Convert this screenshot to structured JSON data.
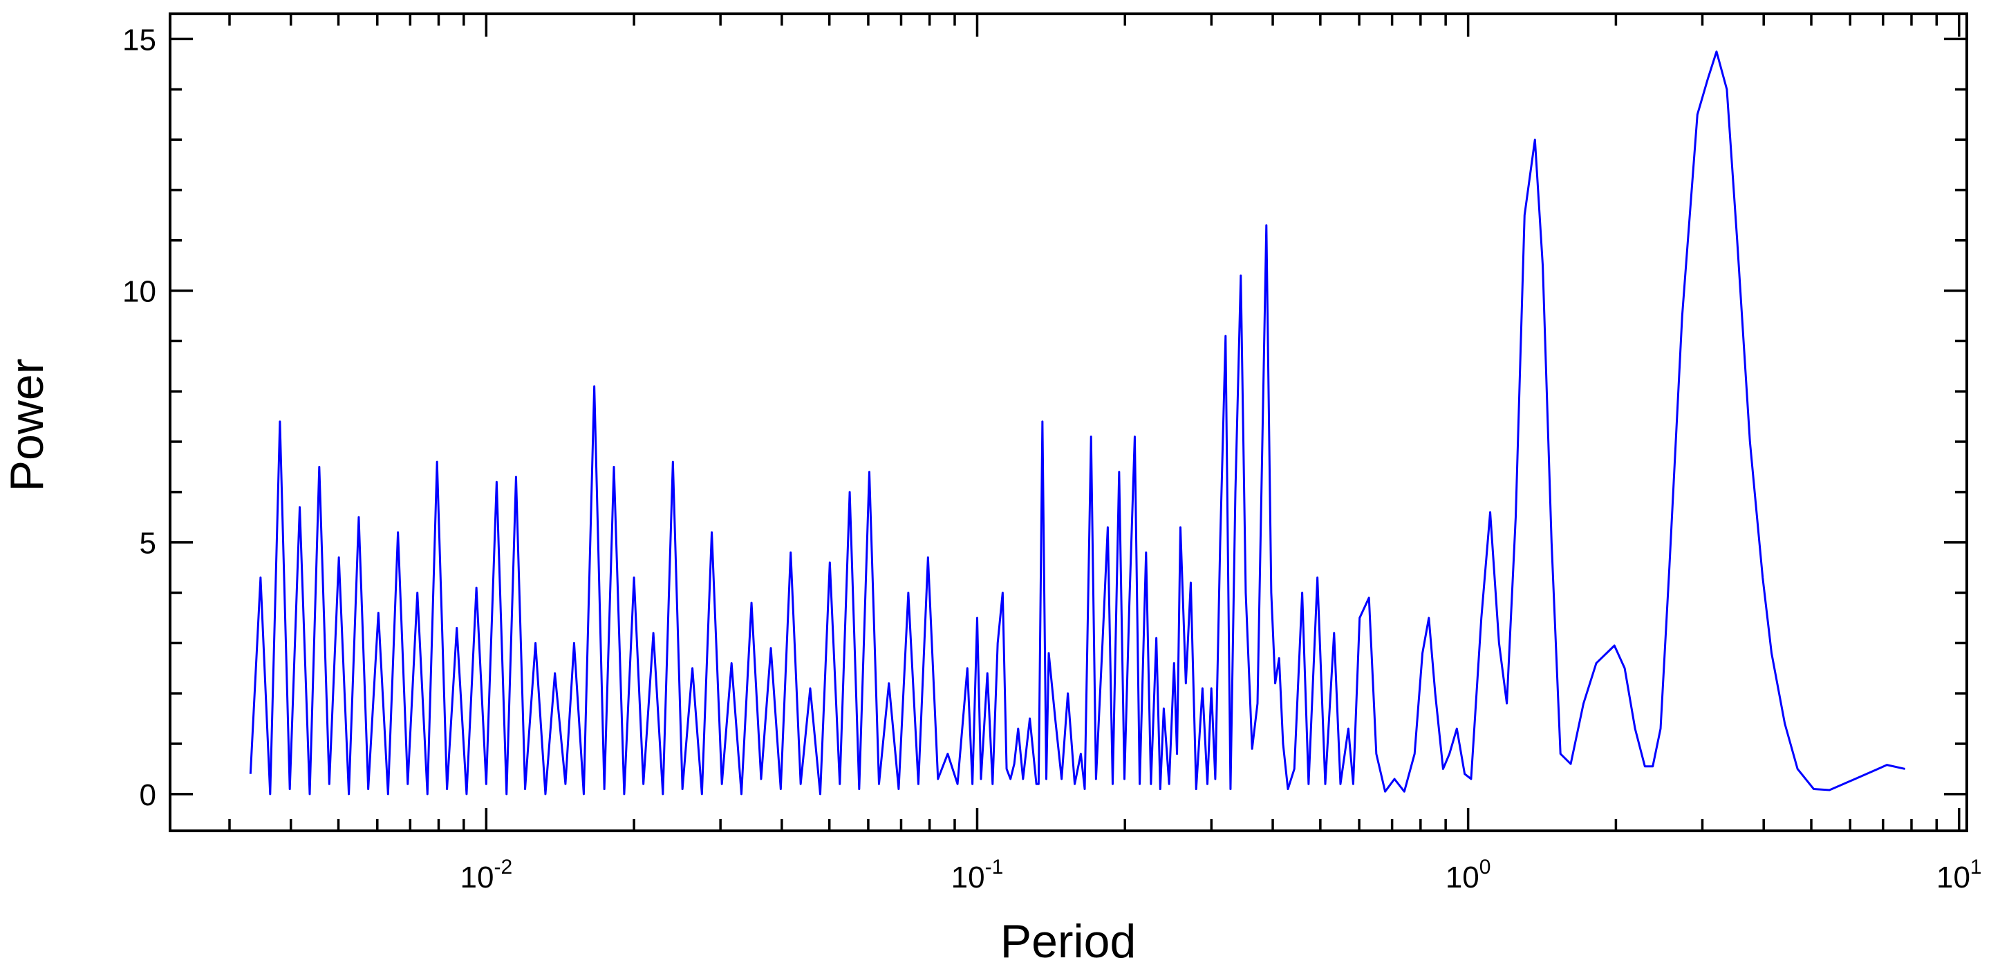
{
  "chart_data": {
    "type": "line",
    "x_label": "Period",
    "y_label": "Power",
    "xscale": "log",
    "color": "#0000ff",
    "xlim": [
      0.00227,
      10.37
    ],
    "ylim": [
      -0.73,
      15.5
    ],
    "xticks": [
      {
        "value": 0.01,
        "label": "10",
        "exponent": "-2"
      },
      {
        "value": 0.1,
        "label": "10",
        "exponent": "-1"
      },
      {
        "value": 1,
        "label": "10",
        "exponent": "0"
      },
      {
        "value": 10,
        "label": "10",
        "exponent": "1"
      }
    ],
    "xminorticks": [
      0.003,
      0.004,
      0.005,
      0.006,
      0.007,
      0.008,
      0.009,
      0.02,
      0.03,
      0.04,
      0.05,
      0.06,
      0.07,
      0.08,
      0.09,
      0.2,
      0.3,
      0.4,
      0.5,
      0.6,
      0.7,
      0.8,
      0.9,
      2,
      3,
      4,
      5,
      6,
      7,
      8,
      9
    ],
    "yticks": [
      0,
      5,
      10,
      15
    ],
    "yminorticks": [
      1,
      2,
      3,
      4,
      6,
      7,
      8,
      9,
      11,
      12,
      13,
      14
    ],
    "x": [
      0.00331,
      0.00347,
      0.00363,
      0.0038,
      0.00398,
      0.00417,
      0.00437,
      0.00457,
      0.00479,
      0.00501,
      0.00525,
      0.0055,
      0.00575,
      0.00603,
      0.00631,
      0.00661,
      0.00692,
      0.00724,
      0.00759,
      0.00794,
      0.00832,
      0.00871,
      0.00912,
      0.00955,
      0.01,
      0.0105,
      0.011,
      0.0115,
      0.012,
      0.0126,
      0.0132,
      0.0138,
      0.0145,
      0.0151,
      0.0158,
      0.0166,
      0.0174,
      0.0182,
      0.0191,
      0.02,
      0.0209,
      0.0219,
      0.0229,
      0.024,
      0.0251,
      0.0263,
      0.0275,
      0.0288,
      0.0302,
      0.0316,
      0.0331,
      0.0347,
      0.0363,
      0.038,
      0.0398,
      0.0417,
      0.0437,
      0.0457,
      0.0479,
      0.0501,
      0.0525,
      0.055,
      0.0575,
      0.0603,
      0.0631,
      0.0661,
      0.0692,
      0.0724,
      0.0759,
      0.0794,
      0.0832,
      0.0871,
      0.0912,
      0.0955,
      0.0978,
      0.1,
      0.1018,
      0.1049,
      0.1075,
      0.1101,
      0.1127,
      0.1148,
      0.1169,
      0.119,
      0.1212,
      0.124,
      0.128,
      0.132,
      0.1334,
      0.1358,
      0.1383,
      0.1399,
      0.1442,
      0.1486,
      0.153,
      0.158,
      0.1626,
      0.1656,
      0.1706,
      0.1746,
      0.18,
      0.1845,
      0.1888,
      0.1946,
      0.1995,
      0.2042,
      0.2094,
      0.2143,
      0.2208,
      0.2259,
      0.2317,
      0.236,
      0.2399,
      0.246,
      0.2518,
      0.2553,
      0.2594,
      0.2661,
      0.2723,
      0.2793,
      0.2877,
      0.2944,
      0.2999,
      0.3055,
      0.3126,
      0.3206,
      0.3281,
      0.3357,
      0.3443,
      0.3524,
      0.3631,
      0.3724,
      0.3882,
      0.3972,
      0.4046,
      0.4121,
      0.4198,
      0.4295,
      0.4426,
      0.4592,
      0.4732,
      0.4932,
      0.5117,
      0.5333,
      0.5495,
      0.5702,
      0.5834,
      0.6012,
      0.6281,
      0.6501,
      0.6776,
      0.7079,
      0.7413,
      0.778,
      0.8072,
      0.8318,
      0.857,
      0.8892,
      0.9162,
      0.9484,
      0.984,
      1.014,
      1.064,
      1.109,
      1.156,
      1.199,
      1.25,
      1.303,
      1.368,
      1.419,
      1.479,
      1.542,
      1.618,
      1.718,
      1.824,
      1.986,
      2.084,
      2.188,
      2.291,
      2.377,
      2.466,
      2.57,
      2.729,
      2.931,
      3.076,
      3.206,
      3.365,
      3.532,
      3.75,
      3.981,
      4.15,
      4.416,
      4.688,
      5.058,
      5.445,
      6.138,
      6.839,
      7.129,
      7.762
    ],
    "values": [
      0.4,
      4.3,
      0.0,
      7.4,
      0.1,
      5.7,
      0.0,
      6.5,
      0.2,
      4.7,
      0.0,
      5.5,
      0.1,
      3.6,
      0.0,
      5.2,
      0.2,
      4.0,
      0.0,
      6.6,
      0.1,
      3.3,
      0.0,
      4.1,
      0.2,
      6.2,
      0.0,
      6.3,
      0.1,
      3.0,
      0.0,
      2.4,
      0.2,
      3.0,
      0.0,
      8.1,
      0.1,
      6.5,
      0.0,
      4.3,
      0.2,
      3.2,
      0.0,
      6.6,
      0.1,
      2.5,
      0.0,
      5.2,
      0.2,
      2.6,
      0.0,
      3.8,
      0.3,
      2.9,
      0.1,
      4.8,
      0.2,
      2.1,
      0.0,
      4.6,
      0.2,
      6.0,
      0.1,
      6.4,
      0.2,
      2.2,
      0.1,
      4.0,
      0.2,
      4.7,
      0.3,
      0.8,
      0.2,
      2.5,
      0.2,
      3.5,
      0.3,
      2.4,
      0.2,
      3.0,
      4.0,
      0.5,
      0.3,
      0.6,
      1.3,
      0.3,
      1.5,
      0.2,
      0.2,
      7.4,
      0.3,
      2.8,
      1.5,
      0.3,
      2.0,
      0.2,
      0.8,
      0.1,
      7.1,
      0.3,
      3.0,
      5.3,
      0.2,
      6.4,
      0.3,
      3.8,
      7.1,
      0.2,
      4.8,
      0.2,
      3.1,
      0.1,
      1.7,
      0.2,
      2.6,
      0.8,
      5.3,
      2.2,
      4.2,
      0.1,
      2.1,
      0.2,
      2.1,
      0.3,
      5.0,
      9.1,
      0.1,
      6.0,
      10.3,
      4.0,
      0.9,
      1.8,
      11.3,
      4.0,
      2.2,
      2.7,
      1.0,
      0.1,
      0.5,
      4.0,
      0.2,
      4.3,
      0.2,
      3.2,
      0.2,
      1.3,
      0.2,
      3.5,
      3.9,
      0.8,
      0.05,
      0.3,
      0.05,
      0.8,
      2.8,
      3.5,
      2.0,
      0.5,
      0.8,
      1.3,
      0.4,
      0.3,
      3.5,
      5.6,
      3.0,
      1.8,
      5.5,
      11.5,
      13.0,
      10.5,
      5.0,
      0.8,
      0.6,
      1.8,
      2.6,
      2.95,
      2.5,
      1.3,
      0.55,
      0.55,
      1.3,
      4.5,
      9.5,
      13.5,
      14.2,
      14.75,
      14.0,
      11.0,
      7.0,
      4.3,
      2.8,
      1.4,
      0.5,
      0.1,
      0.08,
      0.3,
      0.5,
      0.58,
      0.5
    ]
  }
}
